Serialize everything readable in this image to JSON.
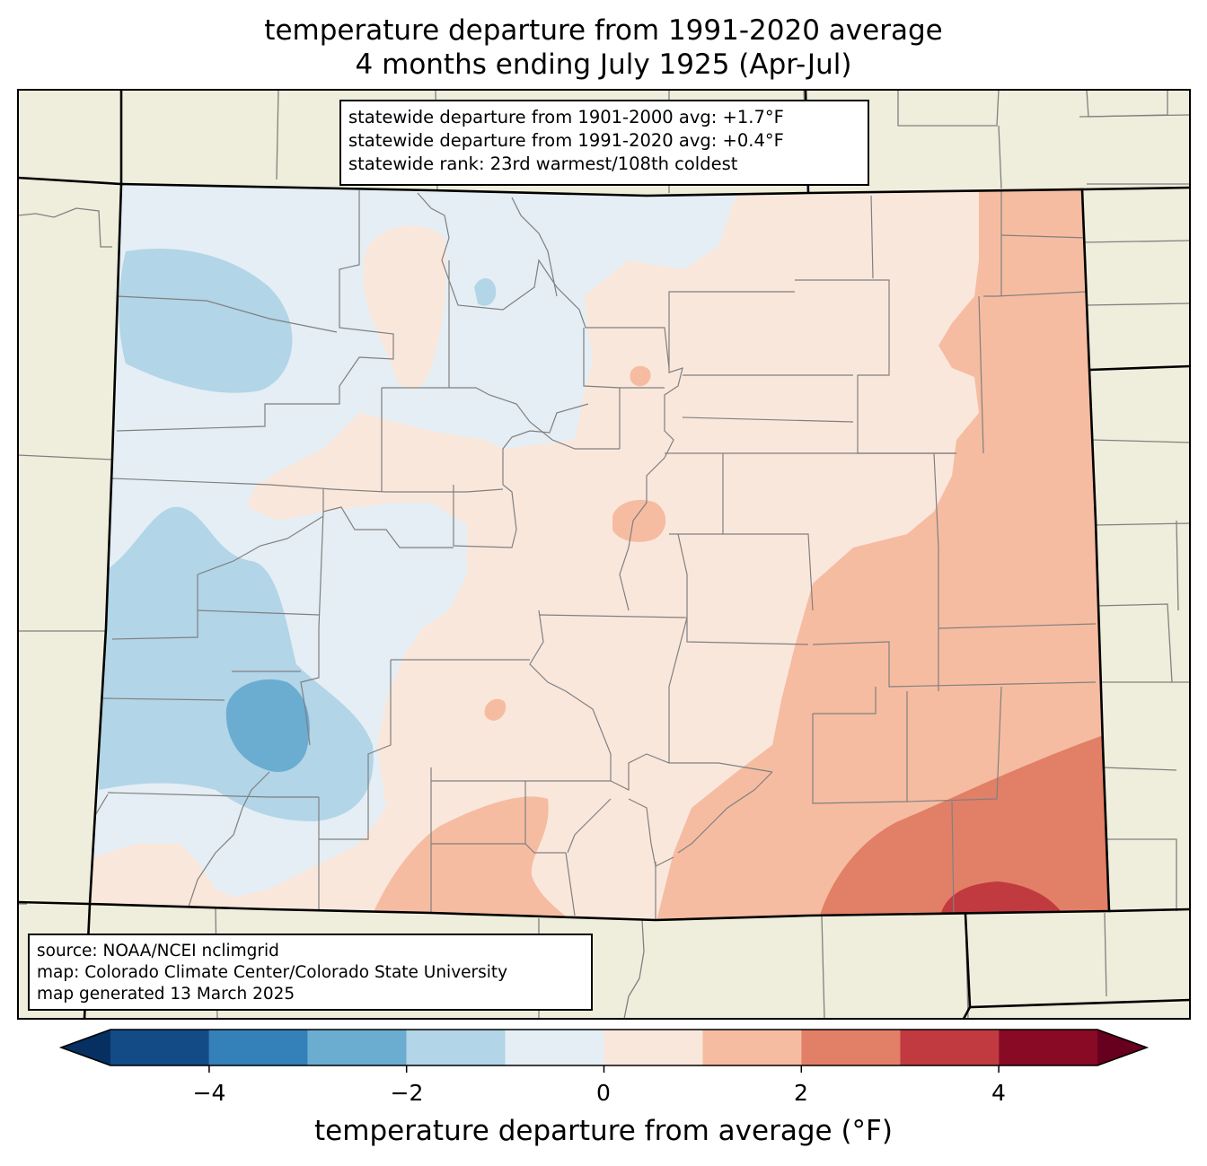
{
  "title": {
    "line1": "temperature departure from 1991-2020 average",
    "line2": "4 months ending July 1925 (Apr-Jul)"
  },
  "stats": {
    "line1": "statewide departure from 1901-2000 avg: +1.7°F",
    "line2": "statewide departure from 1991-2020 avg: +0.4°F",
    "line3": "statewide rank: 23rd warmest/108th coldest"
  },
  "source": {
    "line1": "source: NOAA/NCEI nclimgrid",
    "line2": "map: Colorado Climate Center/Colorado State University",
    "line3": "map generated 13 March 2025"
  },
  "colorbar": {
    "label": "temperature departure from average (°F)",
    "ticks": [
      "−4",
      "−2",
      "0",
      "2",
      "4"
    ],
    "range": [
      -5,
      5
    ],
    "extend": "both",
    "levels": [
      {
        "min": -5,
        "max": -4,
        "color": "#134b87"
      },
      {
        "min": -4,
        "max": -3,
        "color": "#3480b9"
      },
      {
        "min": -3,
        "max": -2,
        "color": "#6bacd1"
      },
      {
        "min": -2,
        "max": -1,
        "color": "#b2d5e7"
      },
      {
        "min": -1,
        "max": 0,
        "color": "#e4eef4"
      },
      {
        "min": 0,
        "max": 1,
        "color": "#fae7dc"
      },
      {
        "min": 1,
        "max": 2,
        "color": "#f6bca1"
      },
      {
        "min": 2,
        "max": 3,
        "color": "#e27f67"
      },
      {
        "min": 3,
        "max": 4,
        "color": "#c13a3f"
      },
      {
        "min": 4,
        "max": 5,
        "color": "#880a25"
      }
    ],
    "under_color": "#053061",
    "over_color": "#67001f"
  },
  "colors": {
    "land_outside": "#efeedc",
    "county_line": "#808080",
    "state_line": "#000000"
  }
}
